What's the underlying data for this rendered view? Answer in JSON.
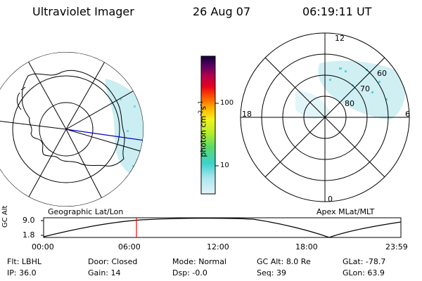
{
  "header": {
    "instrument": "Ultraviolet Imager",
    "date": "26 Aug 07",
    "time": "06:19:11 UT"
  },
  "geo_panel": {
    "label": "Geographic Lat/Lon"
  },
  "apex_panel": {
    "label": "Apex MLat/MLT",
    "mlt_labels": [
      "12",
      "18",
      "6",
      "0"
    ],
    "lat_labels": [
      "60",
      "70",
      "80"
    ]
  },
  "colorbar": {
    "unit_label": "photon cm",
    "unit_exp1": "-2",
    "unit_s": "s",
    "unit_exp2": "-1",
    "tick_labels": [
      "100",
      "10"
    ]
  },
  "altitude_plot": {
    "ylabel": "GC Alt",
    "y_ticks": [
      "9.0",
      "1.8"
    ],
    "x_ticks": [
      "00:00",
      "06:00",
      "12:00",
      "18:00",
      "23:59"
    ],
    "marker_time": "06:19"
  },
  "status": {
    "row1": [
      {
        "label": "Flt:",
        "value": "LBHL"
      },
      {
        "label": "Door:",
        "value": "Closed"
      },
      {
        "label": "Mode:",
        "value": "Normal"
      },
      {
        "label": "GC Alt:",
        "value": "8.0 Re"
      },
      {
        "label": "GLat:",
        "value": "-78.7"
      }
    ],
    "row2": [
      {
        "label": "IP:",
        "value": "36.0"
      },
      {
        "label": "Gain:",
        "value": "14"
      },
      {
        "label": "Dsp:",
        "value": "-0.0"
      },
      {
        "label": "Seq:",
        "value": "39"
      },
      {
        "label": "GLon:",
        "value": "63.9"
      }
    ]
  },
  "colors": {
    "marker": "#ff0000",
    "meridian": "#0000cc",
    "aurora": "#9fe0e8"
  }
}
